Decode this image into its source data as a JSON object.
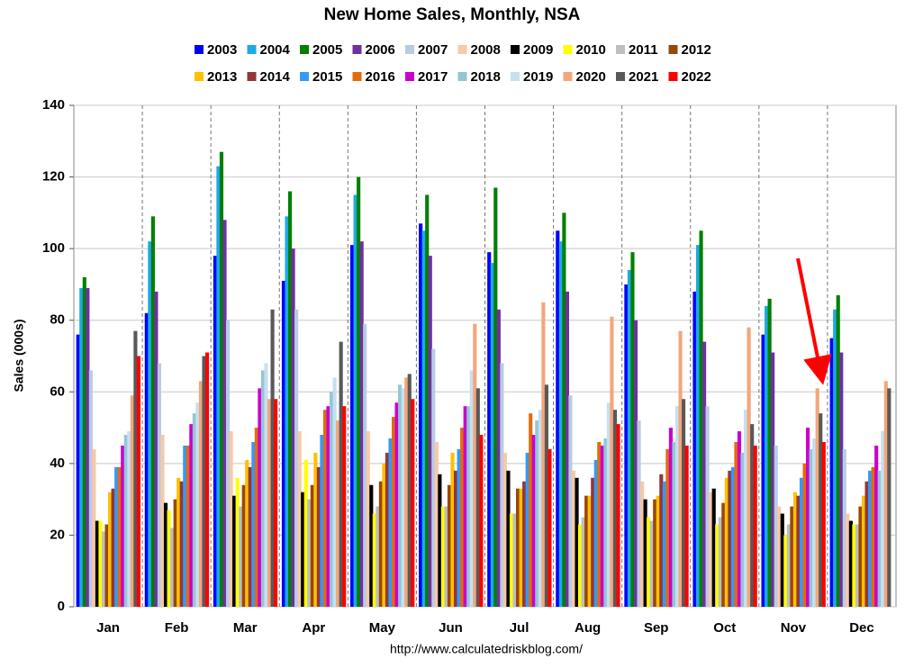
{
  "chart_data": {
    "type": "bar",
    "title": "New Home Sales, Monthly, NSA",
    "y_label": "Sales (000s)",
    "footer": "http://www.calculatedriskblog.com/",
    "categories": [
      "Jan",
      "Feb",
      "Mar",
      "Apr",
      "May",
      "Jun",
      "Jul",
      "Aug",
      "Sep",
      "Oct",
      "Nov",
      "Dec"
    ],
    "ylim": [
      0,
      140
    ],
    "yticks": [
      0,
      20,
      40,
      60,
      80,
      100,
      120,
      140
    ],
    "grid": true,
    "series": [
      {
        "name": "2003",
        "color": "#0000ff",
        "values": [
          76,
          82,
          98,
          91,
          101,
          107,
          99,
          105,
          90,
          88,
          76,
          75
        ]
      },
      {
        "name": "2004",
        "color": "#1ea8e8",
        "values": [
          89,
          102,
          123,
          109,
          115,
          105,
          96,
          102,
          94,
          101,
          84,
          83
        ]
      },
      {
        "name": "2005",
        "color": "#008000",
        "values": [
          92,
          109,
          127,
          116,
          120,
          115,
          117,
          110,
          99,
          105,
          86,
          87
        ]
      },
      {
        "name": "2006",
        "color": "#7030a0",
        "values": [
          89,
          88,
          108,
          100,
          102,
          98,
          83,
          88,
          80,
          74,
          71,
          71
        ]
      },
      {
        "name": "2007",
        "color": "#b8cce4",
        "values": [
          66,
          68,
          80,
          83,
          79,
          72,
          68,
          59,
          52,
          56,
          45,
          44
        ]
      },
      {
        "name": "2008",
        "color": "#f8c8a8",
        "values": [
          44,
          48,
          49,
          49,
          49,
          46,
          43,
          38,
          35,
          32,
          28,
          26
        ]
      },
      {
        "name": "2009",
        "color": "#000000",
        "values": [
          24,
          29,
          31,
          32,
          34,
          37,
          38,
          36,
          30,
          33,
          26,
          24
        ]
      },
      {
        "name": "2010",
        "color": "#ffff00",
        "values": [
          24,
          27,
          36,
          41,
          26,
          28,
          26,
          23,
          25,
          23,
          20,
          23
        ]
      },
      {
        "name": "2011",
        "color": "#bfbfbf",
        "values": [
          21,
          22,
          28,
          30,
          28,
          28,
          26,
          25,
          24,
          25,
          23,
          23
        ]
      },
      {
        "name": "2012",
        "color": "#984807",
        "values": [
          23,
          30,
          34,
          34,
          35,
          34,
          33,
          31,
          30,
          29,
          28,
          28
        ]
      },
      {
        "name": "2013",
        "color": "#ffc000",
        "values": [
          32,
          36,
          41,
          43,
          40,
          43,
          33,
          31,
          31,
          36,
          32,
          31
        ]
      },
      {
        "name": "2014",
        "color": "#953735",
        "values": [
          33,
          35,
          39,
          39,
          43,
          38,
          35,
          36,
          37,
          38,
          31,
          35
        ]
      },
      {
        "name": "2015",
        "color": "#3399ff",
        "values": [
          39,
          45,
          46,
          48,
          47,
          44,
          43,
          41,
          35,
          39,
          36,
          38
        ]
      },
      {
        "name": "2016",
        "color": "#e36c09",
        "values": [
          39,
          45,
          50,
          55,
          53,
          50,
          54,
          46,
          44,
          46,
          40,
          39
        ]
      },
      {
        "name": "2017",
        "color": "#cc00cc",
        "values": [
          45,
          51,
          61,
          56,
          57,
          56,
          48,
          45,
          50,
          49,
          50,
          45
        ]
      },
      {
        "name": "2018",
        "color": "#93c6d6",
        "values": [
          48,
          54,
          66,
          60,
          62,
          56,
          52,
          47,
          46,
          43,
          44,
          38
        ]
      },
      {
        "name": "2019",
        "color": "#c6e0f0",
        "values": [
          49,
          57,
          68,
          64,
          61,
          66,
          55,
          57,
          56,
          55,
          47,
          49
        ]
      },
      {
        "name": "2020",
        "color": "#f4a67a",
        "values": [
          59,
          63,
          58,
          52,
          64,
          79,
          85,
          81,
          77,
          78,
          61,
          63
        ]
      },
      {
        "name": "2021",
        "color": "#595959",
        "values": [
          77,
          70,
          83,
          74,
          65,
          61,
          62,
          55,
          58,
          51,
          54,
          61
        ]
      },
      {
        "name": "2022",
        "color": "#ff0000",
        "values": [
          70,
          71,
          58,
          56,
          58,
          48,
          44,
          51,
          45,
          45,
          46,
          null
        ]
      }
    ]
  }
}
